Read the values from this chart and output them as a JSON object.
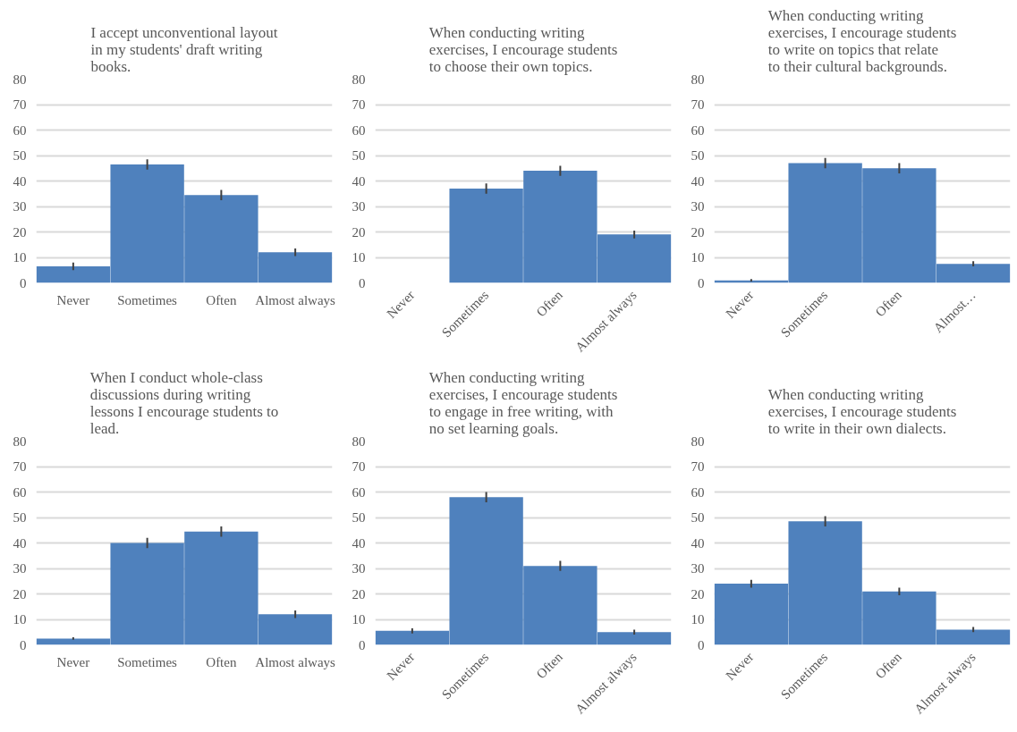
{
  "chart_data": [
    {
      "type": "bar",
      "title": "I accept unconventional layout in my students' draft writing books.",
      "categories": [
        "Never",
        "Sometimes",
        "Often",
        "Almost always"
      ],
      "values": [
        6.5,
        46.5,
        34.5,
        12
      ],
      "errors": [
        1.5,
        2,
        2,
        1.5
      ],
      "color": "#4f81bd",
      "ylim": [
        0,
        80
      ],
      "yticks": [
        0,
        10,
        20,
        30,
        40,
        50,
        60,
        70,
        80
      ],
      "grid": "y"
    },
    {
      "type": "bar",
      "title": "When conducting writing exercises, I encourage students to choose their own topics.",
      "categories": [
        "Never",
        "Sometimes",
        "Often",
        "Almost always"
      ],
      "values": [
        0,
        37,
        44,
        19
      ],
      "errors": [
        0,
        2,
        2,
        1.5
      ],
      "color": "#4f81bd",
      "ylim": [
        0,
        80
      ],
      "yticks": [
        0,
        10,
        20,
        30,
        40,
        50,
        60,
        70,
        80
      ],
      "grid": "y"
    },
    {
      "type": "bar",
      "title": "When conducting writing exercises, I encourage students to write on topics that relate to their cultural backgrounds.",
      "categories": [
        "Never",
        "Sometimes",
        "Often",
        "Almost…"
      ],
      "values": [
        1,
        47,
        45,
        7.5
      ],
      "errors": [
        0.5,
        2,
        2,
        1
      ],
      "color": "#4f81bd",
      "ylim": [
        0,
        80
      ],
      "yticks": [
        0,
        10,
        20,
        30,
        40,
        50,
        60,
        70,
        80
      ],
      "grid": "y"
    },
    {
      "type": "bar",
      "title": "When I conduct whole-class discussions during writing lessons I encourage students to lead.",
      "categories": [
        "Never",
        "Sometimes",
        "Often",
        "Almost always"
      ],
      "values": [
        2.5,
        40,
        44.5,
        12
      ],
      "errors": [
        0.5,
        2,
        2,
        1.5
      ],
      "color": "#4f81bd",
      "ylim": [
        0,
        80
      ],
      "yticks": [
        0,
        10,
        20,
        30,
        40,
        50,
        60,
        70,
        80
      ],
      "grid": "y"
    },
    {
      "type": "bar",
      "title": "When conducting writing exercises, I encourage students to engage in free writing, with no set learning goals.",
      "categories": [
        "Never",
        "Sometimes",
        "Often",
        "Almost always"
      ],
      "values": [
        5.5,
        58,
        31,
        5
      ],
      "errors": [
        1,
        2,
        2,
        1
      ],
      "color": "#4f81bd",
      "ylim": [
        0,
        80
      ],
      "yticks": [
        0,
        10,
        20,
        30,
        40,
        50,
        60,
        70,
        80
      ],
      "grid": "y"
    },
    {
      "type": "bar",
      "title": "When conducting writing exercises, I encourage students to write in their own dialects.",
      "categories": [
        "Never",
        "Sometimes",
        "Often",
        "Almost always"
      ],
      "values": [
        24,
        48.5,
        21,
        6
      ],
      "errors": [
        1.5,
        2,
        1.5,
        1
      ],
      "color": "#4f81bd",
      "ylim": [
        0,
        80
      ],
      "yticks": [
        0,
        10,
        20,
        30,
        40,
        50,
        60,
        70,
        80
      ],
      "grid": "y"
    }
  ]
}
